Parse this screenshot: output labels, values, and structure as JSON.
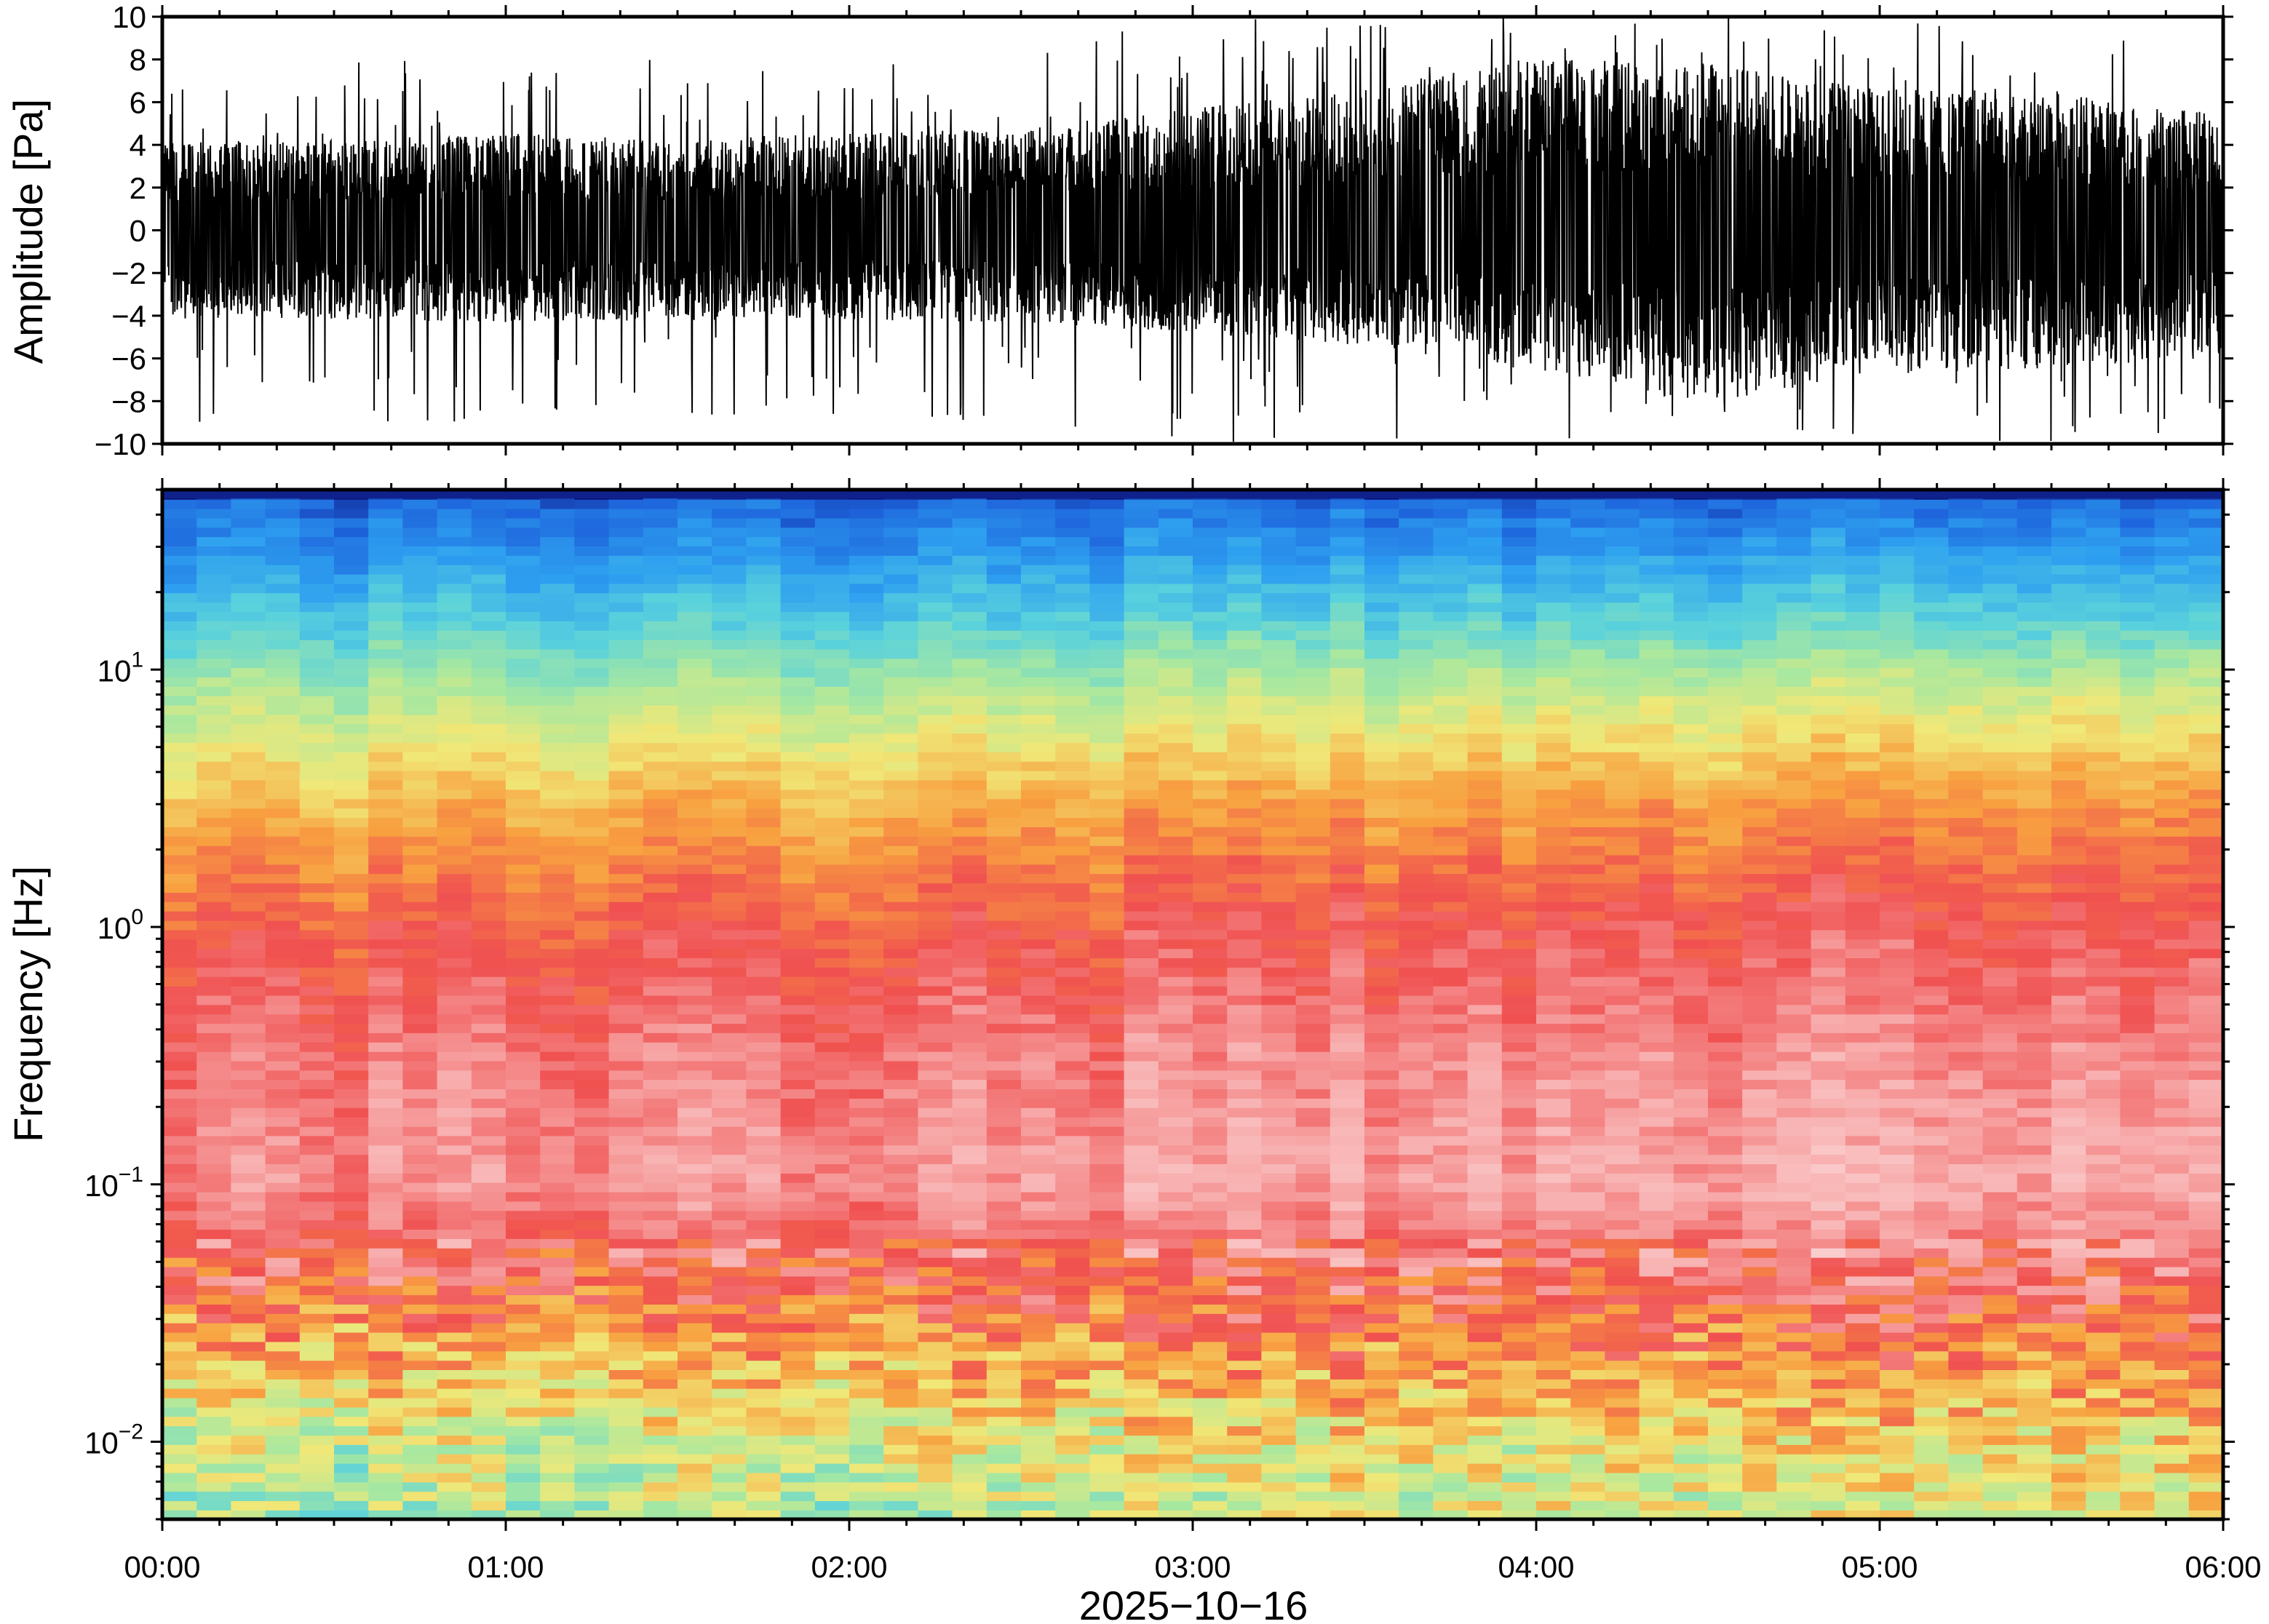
{
  "chart_data": [
    {
      "type": "line",
      "name": "waveform",
      "ylabel": "Amplitude [Pa]",
      "ylim": [
        -10,
        10
      ],
      "yticks": [
        -10,
        -8,
        -6,
        -4,
        -2,
        0,
        2,
        4,
        6,
        8,
        10
      ],
      "ytick_labels": [
        "−10",
        "−8",
        "−6",
        "−4",
        "−2",
        "0",
        "2",
        "4",
        "6",
        "8",
        "10"
      ],
      "xlim": [
        "00:00",
        "06:00"
      ],
      "grid": false,
      "envelope": {
        "x_hours": [
          0.0,
          0.5,
          1.0,
          1.5,
          2.0,
          2.5,
          3.0,
          3.5,
          4.0,
          4.5,
          5.0,
          5.5,
          6.0
        ],
        "upper": [
          3.5,
          3.5,
          3.8,
          3.5,
          3.8,
          4.0,
          4.8,
          5.5,
          6.8,
          6.5,
          5.5,
          5.5,
          4.5
        ],
        "lower": [
          -3.5,
          -3.5,
          -3.6,
          -3.5,
          -3.5,
          -3.6,
          -4.0,
          -4.5,
          -5.5,
          -6.8,
          -5.5,
          -5.5,
          -4.8
        ],
        "spikes_max": [
          8,
          8,
          9,
          8,
          8,
          9,
          10,
          10,
          10,
          10,
          10,
          10,
          9
        ],
        "spikes_min": [
          -9,
          -9,
          -9,
          -9,
          -9,
          -9,
          -10,
          -10,
          -10,
          -10,
          -10,
          -10,
          -10
        ]
      }
    },
    {
      "type": "heatmap",
      "name": "spectrogram",
      "ylabel": "Frequency [Hz]",
      "yscale": "log",
      "ylim": [
        0.005,
        50
      ],
      "yticks": [
        {
          "value": 0.01,
          "base": "10",
          "exp": "−2"
        },
        {
          "value": 0.1,
          "base": "10",
          "exp": "−1"
        },
        {
          "value": 1,
          "base": "10",
          "exp": "0"
        },
        {
          "value": 10,
          "base": "10",
          "exp": "1"
        }
      ],
      "xlabel": "2025−10−16",
      "xticks": [
        "00:00",
        "01:00",
        "02:00",
        "03:00",
        "04:00",
        "05:00",
        "06:00"
      ],
      "colormap": [
        "#0a0a6e",
        "#1e64dc",
        "#2ea0f0",
        "#5ad2dc",
        "#a8e8a0",
        "#f0e878",
        "#f8a040",
        "#f05050",
        "#f8b0b0",
        "#fce0e0"
      ],
      "profile": {
        "freq_hz": [
          50,
          45,
          30,
          15,
          8,
          3,
          1,
          0.3,
          0.1,
          0.04,
          0.02,
          0.01,
          0.005
        ],
        "level_start": [
          0.0,
          0.12,
          0.18,
          0.32,
          0.45,
          0.62,
          0.75,
          0.82,
          0.84,
          0.74,
          0.6,
          0.5,
          0.42
        ],
        "level_end": [
          0.0,
          0.14,
          0.22,
          0.36,
          0.52,
          0.7,
          0.8,
          0.86,
          0.9,
          0.8,
          0.72,
          0.6,
          0.55
        ]
      }
    }
  ]
}
